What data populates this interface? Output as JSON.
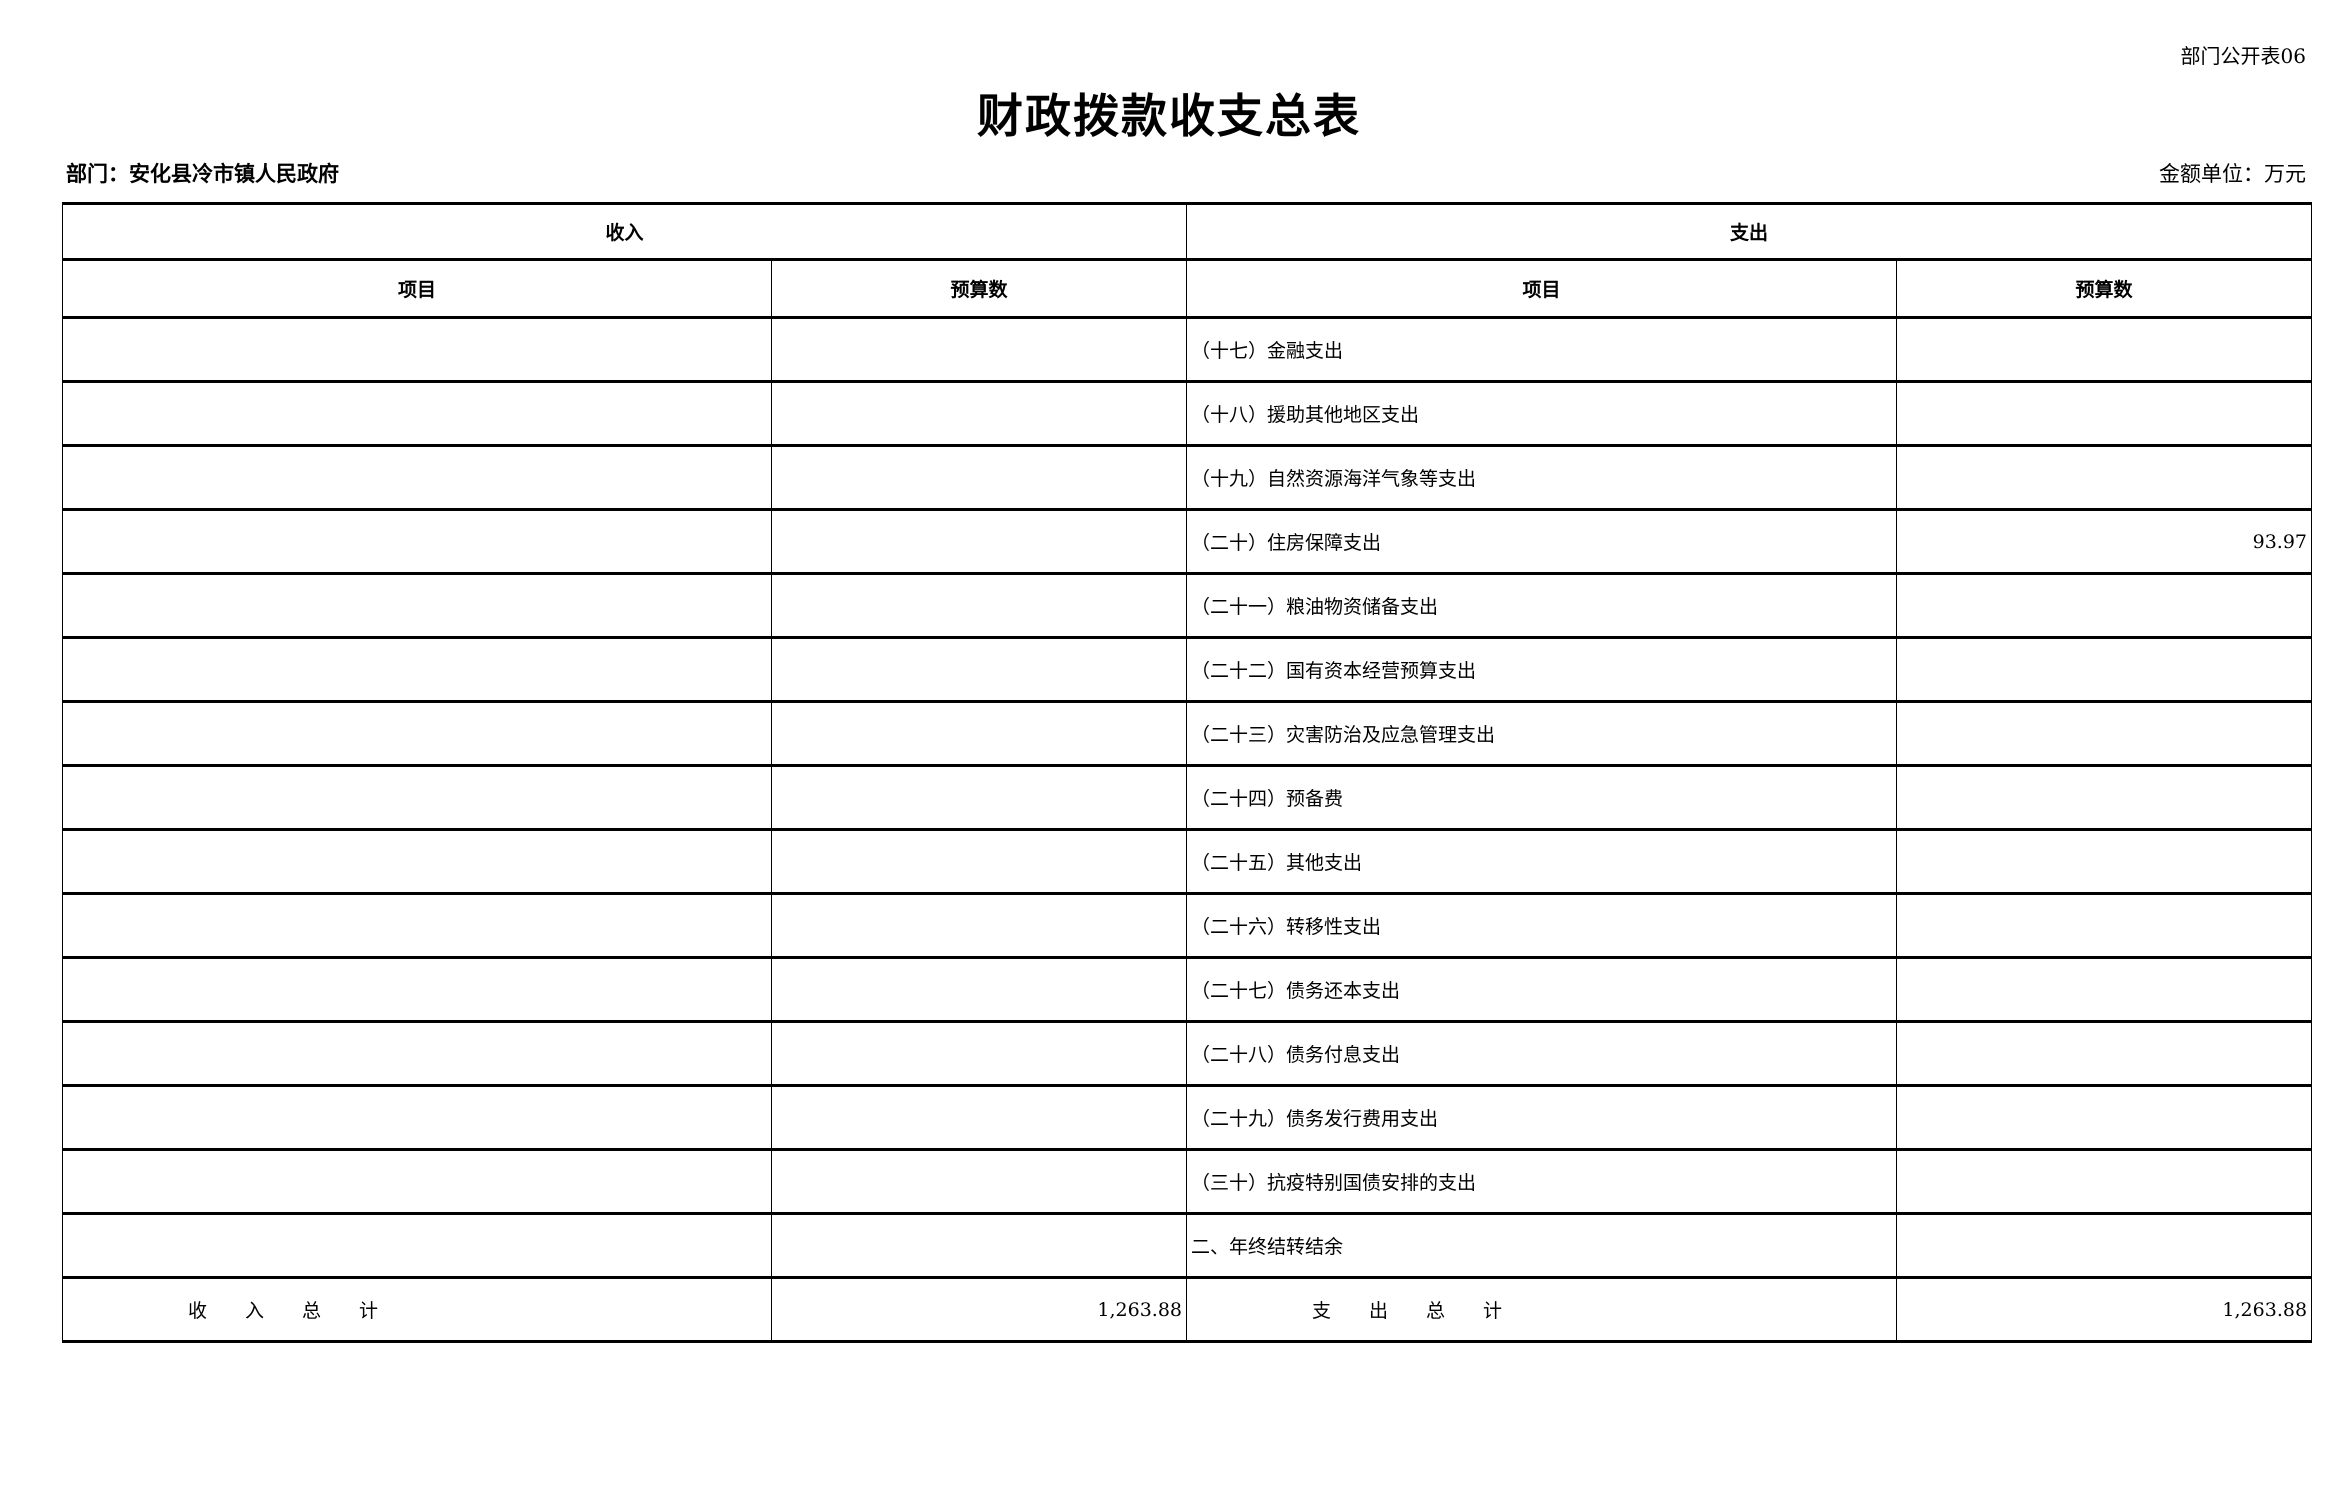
{
  "form_no": "部门公开表06",
  "title": "财政拨款收支总表",
  "department": "部门：安化县冷市镇人民政府",
  "unit": "金额单位：万元",
  "headers": {
    "income": "收入",
    "expense": "支出",
    "item": "项目",
    "budget": "预算数"
  },
  "rows": [
    {
      "in_item": "",
      "in_budget": "",
      "ex_item": "（十七）金融支出",
      "ex_budget": ""
    },
    {
      "in_item": "",
      "in_budget": "",
      "ex_item": "（十八）援助其他地区支出",
      "ex_budget": ""
    },
    {
      "in_item": "",
      "in_budget": "",
      "ex_item": "（十九）自然资源海洋气象等支出",
      "ex_budget": ""
    },
    {
      "in_item": "",
      "in_budget": "",
      "ex_item": "（二十）住房保障支出",
      "ex_budget": "93.97"
    },
    {
      "in_item": "",
      "in_budget": "",
      "ex_item": "（二十一）粮油物资储备支出",
      "ex_budget": ""
    },
    {
      "in_item": "",
      "in_budget": "",
      "ex_item": "（二十二）国有资本经营预算支出",
      "ex_budget": ""
    },
    {
      "in_item": "",
      "in_budget": "",
      "ex_item": "（二十三）灾害防治及应急管理支出",
      "ex_budget": ""
    },
    {
      "in_item": "",
      "in_budget": "",
      "ex_item": "（二十四）预备费",
      "ex_budget": ""
    },
    {
      "in_item": "",
      "in_budget": "",
      "ex_item": "（二十五）其他支出",
      "ex_budget": ""
    },
    {
      "in_item": "",
      "in_budget": "",
      "ex_item": "（二十六）转移性支出",
      "ex_budget": ""
    },
    {
      "in_item": "",
      "in_budget": "",
      "ex_item": "（二十七）债务还本支出",
      "ex_budget": ""
    },
    {
      "in_item": "",
      "in_budget": "",
      "ex_item": "（二十八）债务付息支出",
      "ex_budget": ""
    },
    {
      "in_item": "",
      "in_budget": "",
      "ex_item": "（二十九）债务发行费用支出",
      "ex_budget": ""
    },
    {
      "in_item": "",
      "in_budget": "",
      "ex_item": "（三十）抗疫特别国债安排的支出",
      "ex_budget": ""
    },
    {
      "in_item": "",
      "in_budget": "",
      "ex_item": "二、年终结转结余",
      "ex_budget": ""
    }
  ],
  "totals": {
    "income_label": "收入总计",
    "income_value": "1,263.88",
    "expense_label": "支出总计",
    "expense_value": "1,263.88"
  }
}
